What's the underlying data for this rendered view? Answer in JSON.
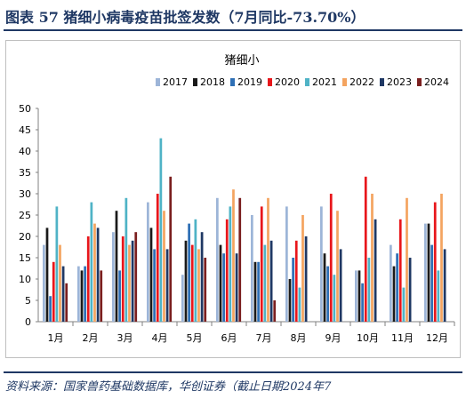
{
  "header": {
    "title": "图表 57 猪细小病毒疫苗批签发数（7月同比-73.70%）"
  },
  "footer": {
    "source": "资料来源：国家兽药基础数据库，华创证券（截止日期2024年7"
  },
  "chart_data": {
    "type": "bar",
    "title": "猪细小",
    "categories": [
      "1月",
      "2月",
      "3月",
      "4月",
      "5月",
      "6月",
      "7月",
      "8月",
      "9月",
      "10月",
      "11月",
      "12月"
    ],
    "ylim": [
      0,
      50
    ],
    "yticks": [
      0,
      5,
      10,
      15,
      20,
      25,
      30,
      35,
      40,
      45,
      50
    ],
    "legend_position": "top",
    "grid": false,
    "series": [
      {
        "name": "2017",
        "color": "#9db5d8",
        "values": [
          18,
          13,
          21,
          28,
          11,
          29,
          25,
          27,
          27,
          12,
          18,
          23
        ]
      },
      {
        "name": "2018",
        "color": "#1a1a1a",
        "values": [
          22,
          12,
          26,
          22,
          19,
          18,
          14,
          10,
          16,
          12,
          13,
          23
        ]
      },
      {
        "name": "2019",
        "color": "#2e6fb5",
        "values": [
          6,
          13,
          12,
          17,
          23,
          16,
          14,
          15,
          13,
          9,
          16,
          18
        ]
      },
      {
        "name": "2020",
        "color": "#e8161b",
        "values": [
          14,
          20,
          20,
          30,
          18,
          24,
          27,
          19,
          30,
          34,
          24,
          28
        ]
      },
      {
        "name": "2021",
        "color": "#4fb3c6",
        "values": [
          27,
          28,
          29,
          43,
          24,
          27,
          18,
          8,
          11,
          15,
          8,
          12
        ]
      },
      {
        "name": "2022",
        "color": "#f4a460",
        "values": [
          18,
          23,
          18,
          26,
          17,
          31,
          29,
          25,
          26,
          30,
          29,
          30
        ]
      },
      {
        "name": "2023",
        "color": "#1f3864",
        "values": [
          13,
          22,
          19,
          17,
          21,
          16,
          19,
          20,
          17,
          24,
          15,
          17
        ]
      },
      {
        "name": "2024",
        "color": "#7b1f1f",
        "values": [
          9,
          12,
          21,
          34,
          15,
          29,
          5,
          null,
          null,
          null,
          null,
          null
        ]
      }
    ]
  }
}
